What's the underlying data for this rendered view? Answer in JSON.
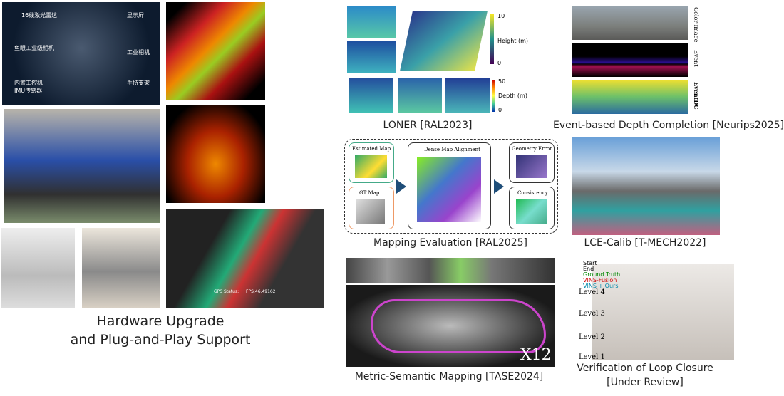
{
  "hardware": {
    "caption_line1": "Hardware Upgrade",
    "caption_line2": "and Plug-and-Play Support",
    "labels": [
      "16线激光雷达",
      "显示屏",
      "鱼眼工业级相机",
      "工业相机",
      "内置工控机",
      "IMU传感器",
      "手持支架"
    ],
    "gui": {
      "gps": "GPS Status:",
      "fps": "FPS:46.49162"
    }
  },
  "loner": {
    "caption": "LONER [RAL2023]",
    "height_label": "Height (m)",
    "height_max": "10",
    "height_min": "0",
    "depth_label": "Depth (m)",
    "depth_max": "50",
    "depth_min": "0"
  },
  "event_dc": {
    "caption": "Event-based Depth Completion [Neurips2025]",
    "rows": [
      "Color image",
      "Event",
      "EventDC"
    ]
  },
  "mapping_eval": {
    "caption": "Mapping Evaluation [RAL2025]",
    "boxes": [
      "Estimated Map",
      "GT Map",
      "Dense Map Alignment",
      "Geometry Error",
      "Consistency"
    ]
  },
  "lce_calib": {
    "caption": "LCE-Calib [T-MECH2022]"
  },
  "metric_semantic": {
    "caption": "Metric-Semantic Mapping [TASE2024]",
    "speed": "X12"
  },
  "loop_closure": {
    "caption_line1": "Verification of Loop Closure",
    "caption_line2": "[Under Review]",
    "legend": [
      "Start",
      "End",
      "Ground Truth",
      "VINS-Fusion",
      "VINS + Ours"
    ],
    "levels": [
      "Level 4",
      "Level 3",
      "Level 2",
      "Level 1"
    ]
  }
}
